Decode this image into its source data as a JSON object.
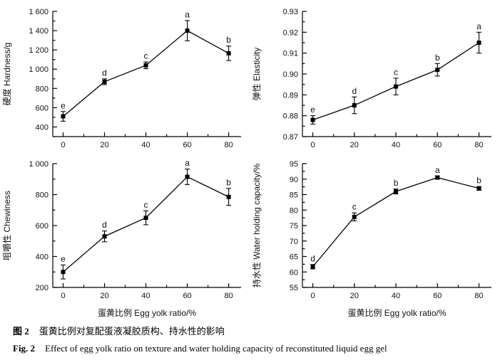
{
  "figure": {
    "caption_zh_label": "图 2",
    "caption_zh_text": "蛋黄比例对复配蛋液凝胶质构、持水性的影响",
    "caption_en_label": "Fig. 2",
    "caption_en_text": "Effect of egg yolk ratio on texture and water holding capacity of reconstituted liquid egg gel"
  },
  "chart_data": [
    {
      "type": "line",
      "name": "hardness",
      "ylabel": "硬度 Hardness/g",
      "xlabel": "",
      "x": [
        0,
        20,
        40,
        60,
        80
      ],
      "values": [
        510,
        870,
        1040,
        1400,
        1165
      ],
      "errors": [
        50,
        30,
        35,
        105,
        75
      ],
      "point_labels": [
        "e",
        "d",
        "c",
        "a",
        "b"
      ],
      "xlim": [
        -5,
        86
      ],
      "ylim": [
        300,
        1600
      ],
      "xticks": [
        0,
        20,
        40,
        60,
        80
      ],
      "xtick_labels": [
        "0",
        "20",
        "40",
        "60",
        "80"
      ],
      "xminor": [
        10,
        30,
        50,
        70
      ],
      "yticks": [
        400,
        600,
        800,
        1000,
        1200,
        1400,
        1600
      ],
      "ytick_labels": [
        "400",
        "600",
        "800",
        "1 000",
        "1 200",
        "1 400",
        "1 600"
      ],
      "yminor": 100,
      "marker": "square",
      "line_color": "#000000",
      "grid": false,
      "legend": "none"
    },
    {
      "type": "line",
      "name": "elasticity",
      "ylabel": "弹性 Elasticity",
      "xlabel": "",
      "x": [
        0,
        20,
        40,
        60,
        80
      ],
      "values": [
        0.878,
        0.885,
        0.894,
        0.902,
        0.915
      ],
      "errors": [
        0.002,
        0.004,
        0.004,
        0.003,
        0.005
      ],
      "point_labels": [
        "e",
        "d",
        "c",
        "b",
        "a"
      ],
      "xlim": [
        -5,
        86
      ],
      "ylim": [
        0.87,
        0.93
      ],
      "xticks": [
        0,
        20,
        40,
        60,
        80
      ],
      "xtick_labels": [
        "0",
        "20",
        "40",
        "60",
        "80"
      ],
      "xminor": [
        10,
        30,
        50,
        70
      ],
      "yticks": [
        0.87,
        0.88,
        0.89,
        0.9,
        0.91,
        0.92,
        0.93
      ],
      "ytick_labels": [
        "0.87",
        "0.88",
        "0.89",
        "0.90",
        "0.91",
        "0.92",
        "0.93"
      ],
      "yminor": 0.005,
      "marker": "square",
      "line_color": "#000000",
      "grid": false,
      "legend": "none"
    },
    {
      "type": "line",
      "name": "chewiness",
      "ylabel": "咀嚼性 Chewiness",
      "xlabel": "蛋黄比例 Egg yolk ratio/%",
      "x": [
        0,
        20,
        40,
        60,
        80
      ],
      "values": [
        300,
        530,
        650,
        915,
        785
      ],
      "errors": [
        45,
        35,
        45,
        50,
        55
      ],
      "point_labels": [
        "e",
        "d",
        "c",
        "a",
        "b"
      ],
      "xlim": [
        -5,
        86
      ],
      "ylim": [
        200,
        1000
      ],
      "xticks": [
        0,
        20,
        40,
        60,
        80
      ],
      "xtick_labels": [
        "0",
        "20",
        "40",
        "60",
        "80"
      ],
      "xminor": [
        10,
        30,
        50,
        70
      ],
      "yticks": [
        200,
        400,
        600,
        800,
        1000
      ],
      "ytick_labels": [
        "200",
        "400",
        "600",
        "800",
        "1 000"
      ],
      "yminor": 100,
      "marker": "square",
      "line_color": "#000000",
      "grid": false,
      "legend": "none"
    },
    {
      "type": "line",
      "name": "water_holding_capacity",
      "ylabel": "持水性 Water holding capacity/%",
      "xlabel": "蛋黄比例 Egg yolk ratio/%",
      "x": [
        0,
        20,
        40,
        60,
        80
      ],
      "values": [
        61.7,
        77.8,
        86.0,
        90.5,
        87.0
      ],
      "errors": [
        0.7,
        1.3,
        0.8,
        0.5,
        0.6
      ],
      "point_labels": [
        "d",
        "c",
        "b",
        "a",
        "b"
      ],
      "xlim": [
        -5,
        86
      ],
      "ylim": [
        55,
        95
      ],
      "xticks": [
        0,
        20,
        40,
        60,
        80
      ],
      "xtick_labels": [
        "0",
        "20",
        "40",
        "60",
        "80"
      ],
      "xminor": [
        10,
        30,
        50,
        70
      ],
      "yticks": [
        55,
        60,
        65,
        70,
        75,
        80,
        85,
        90,
        95
      ],
      "ytick_labels": [
        "55",
        "60",
        "65",
        "70",
        "75",
        "80",
        "85",
        "90",
        "95"
      ],
      "yminor": 2.5,
      "marker": "square",
      "line_color": "#000000",
      "grid": false,
      "legend": "none"
    }
  ]
}
